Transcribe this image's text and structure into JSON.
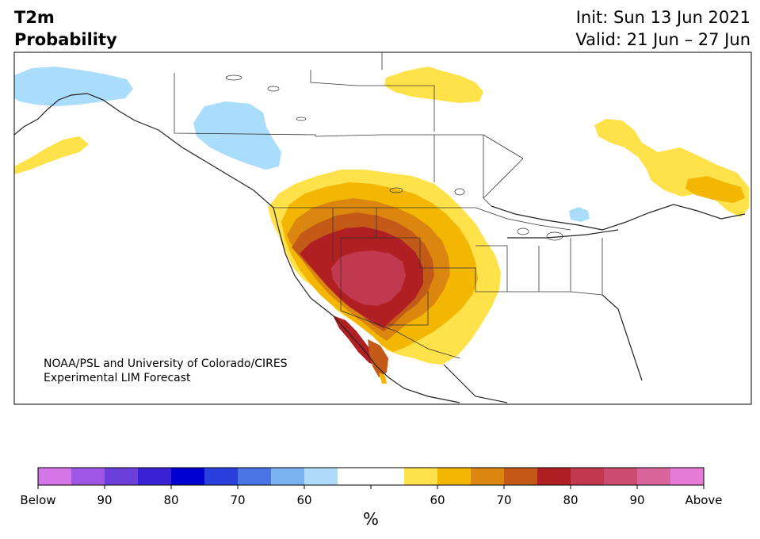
{
  "header": {
    "variable": "T2m",
    "product": "Probability",
    "init": "Init: Sun 13 Jun 2021",
    "valid": "Valid: 21 Jun – 27 Jun"
  },
  "credit": {
    "line1": "NOAA/PSL and University of Colorado/CIRES",
    "line2": "Experimental LIM Forecast"
  },
  "colorbar": {
    "unit": "%",
    "colors": [
      "#d475e8",
      "#9f57e3",
      "#6b3fd9",
      "#3b22d5",
      "#0000d0",
      "#2a3fdd",
      "#4a73e3",
      "#7ab1ef",
      "#b0dcfb",
      "#ffffff",
      "#ffffff",
      "#ffe14a",
      "#f2b603",
      "#db870f",
      "#c45a18",
      "#b01f22",
      "#c0394f",
      "#cc4d70",
      "#d8649a",
      "#e57bd6"
    ],
    "labels": [
      "Below",
      "90",
      "80",
      "70",
      "60",
      "",
      "60",
      "70",
      "80",
      "90",
      "Above"
    ]
  },
  "map": {
    "colors": {
      "light_blue": "#aadcfb",
      "yellow": "#ffe14a",
      "gold": "#f2b603",
      "orange": "#db870f",
      "dark_orange": "#c45a18",
      "red": "#b01f22",
      "crimson": "#c0394f"
    }
  }
}
